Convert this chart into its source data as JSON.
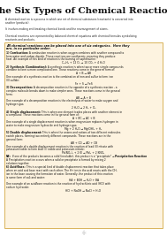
{
  "title": "The Six Types of Chemical Reaction",
  "bg_color": "#ffffff",
  "box_facecolor": "#fdf3e0",
  "box_edgecolor": "#d4a843",
  "intro": [
    [
      "A ",
      "regular",
      "chemical reaction",
      "underline",
      " is a process in which one set of chemical substances (",
      "regular",
      "reactants",
      "underline",
      ") is converted into"
    ],
    [
      "another (",
      "regular",
      "products",
      "underline",
      ")."
    ],
    [
      ""
    ],
    [
      "It involves making and ",
      "regular",
      "breaking chemical bonds",
      "underline",
      " and the ",
      "rearrangement of atoms",
      "underline",
      "."
    ],
    [
      ""
    ],
    [
      "Chemical reactions are represented by ",
      "regular",
      "balanced chemical equations",
      "underline",
      " with chemical formulas symbolizing"
    ],
    [
      "reactants and products."
    ]
  ],
  "intro_plain": [
    "A chemical reaction is a process in which one set of chemical substances (reactants) is converted into\nanother (products).",
    "It involves making and breaking chemical bonds and the rearrangement of atoms.",
    "Chemical reactions are represented by balanced chemical equations with chemical formulas symbolizing\nreactants and products."
  ],
  "box_header_line1": "All chemical reactions can be placed into one of six categories.  Here they",
  "box_header_line2": "are, in no particular order:",
  "reactions": [
    {
      "num": "1) ",
      "name": "Combustion:",
      "desc": " A combustion reaction is when oxygen combines with another compound to form water and carbon dioxide. These reactions are exothermic, meaning they produce heat. An example of this kind of reaction is the burning of naphthalene:",
      "equation": "C₁₀H₈ + 12 O₂ → 10 CO₂ + 4 H₂O"
    },
    {
      "num": "2) ",
      "name": "Synthesis (Combination):",
      "desc": " A synthesis reaction is when two or more simple compounds combine to form a more complicated one. These reactions come in the general form of:",
      "general": "A + B → AB",
      "example": "One example of a synthesis reaction is the combination of iron and sulfur to form iron (II) sulfide:",
      "equation": "Fe + S → FeS"
    },
    {
      "num": "3) ",
      "name": "Decomposition:",
      "desc": " A decomposition reaction is the opposite of a synthesis reaction - a complex molecule breaks down to make simpler ones. These reactions come in the general form:",
      "general": "AB → A + B",
      "example": "One example of a decomposition reaction is the electrolysis of water to make oxygen and hydrogen gas:",
      "equation": "2 H₂O → 2 H₂ + O₂"
    },
    {
      "num": "4) ",
      "name": "Single displacement:",
      "desc": " This is when one element trades places with another element in a compound. These reactions come in the general form of:",
      "general": "A + BC → AC + B",
      "example": "One example of a single displacement reaction is when magnesium replaces hydrogen in water to make magnesium hydroxide and hydrogen gas:",
      "equation": "Mg + 2 H₂O → Mg(OH)₂ + H₂"
    },
    {
      "num": "5) ",
      "name": "Double displacement:",
      "desc": " This is when the anions and cations of two different molecules switch places, forming two entirely different compounds. These reactions are in the general form:",
      "general": "AB + CD → AD + CB",
      "example": "One example of a double displacement reaction is the reaction of lead (II) nitrate with potassium iodide to form lead (II) iodide and potassium nitrate:",
      "equation": "Pb(NO₃)₂ + 2 KI → PbI₂ + 2 KNO₃",
      "note_bold": "NB:",
      "note_rest": " If one of the products becomes a solid (insoluble), this product is a \"precipitate\" → ",
      "note_italic": "Precipitation Reaction",
      "note_line2": "A Precipitation reaction occurs when a solid or precipitate is formed by mixing 2 solutions together."
    },
    {
      "num": "6) ",
      "name": "Acid/Base:",
      "desc": " This is a special kind of double displacement reaction that takes place when an acid and base react with each other. The H+ ion in the acid reacts with the OH- ion in the base causing the formation of water. Generally, the product of this reaction is some form of salt and water:",
      "general": "HA + BOH → H₂O + BA",
      "example": "One example of an acid/base reaction is the reaction of hydrochloric acid (HCl) with sodium hydroxide:",
      "equation": "HCl + NaOH → NaCl + H₂O"
    }
  ]
}
